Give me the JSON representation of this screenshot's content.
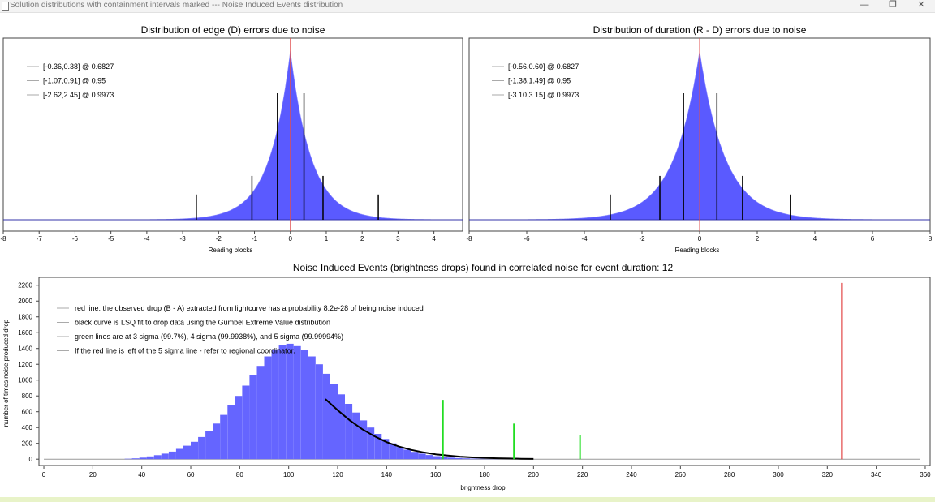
{
  "window": {
    "title": "Solution distributions with containment intervals marked --- Noise Induced Events distribution",
    "minimize_icon": "minimize-icon",
    "maximize_icon": "restore-icon",
    "close_icon": "close-icon"
  },
  "chart_data": [
    {
      "type": "bar",
      "title": "Distribution of edge (D) errors due to noise",
      "xlabel": "Reading blocks",
      "ylabel": "",
      "xlim": [
        -8,
        4.8
      ],
      "x_ticks": [
        -8,
        -7,
        -6,
        -5,
        -4,
        -3,
        -2,
        -1,
        0,
        1,
        2,
        3,
        4
      ],
      "histogram_shape": "laplace-like, centered at 0, scale 0.36",
      "center_line": {
        "x": 0,
        "color": "#e05050"
      },
      "interval_lines": [
        {
          "x": -0.36,
          "height": 0.75
        },
        {
          "x": 0.38,
          "height": 0.75
        },
        {
          "x": -1.07,
          "height": 0.26
        },
        {
          "x": 0.91,
          "height": 0.26
        },
        {
          "x": -2.62,
          "height": 0.15
        },
        {
          "x": 2.45,
          "height": 0.15
        }
      ],
      "legend": [
        "[-0.36,0.38] @ 0.6827",
        "[-1.07,0.91] @ 0.95",
        "[-2.62,2.45] @ 0.9973"
      ],
      "legend_position": "top-left",
      "colors": {
        "bars": "#5a5aff",
        "interval": "#000000",
        "center": "#e05050",
        "baseline": "#3333aa"
      }
    },
    {
      "type": "bar",
      "title": "Distribution of duration (R - D) errors due to noise",
      "xlabel": "Reading blocks",
      "ylabel": "",
      "xlim": [
        -8,
        8
      ],
      "x_ticks": [
        -8,
        -6,
        -4,
        -2,
        0,
        2,
        4,
        6,
        8
      ],
      "histogram_shape": "laplace-like, centered at 0, scale 0.55",
      "center_line": {
        "x": 0,
        "color": "#e05050"
      },
      "interval_lines": [
        {
          "x": -0.56,
          "height": 0.75
        },
        {
          "x": 0.6,
          "height": 0.75
        },
        {
          "x": -1.38,
          "height": 0.26
        },
        {
          "x": 1.49,
          "height": 0.26
        },
        {
          "x": -3.1,
          "height": 0.15
        },
        {
          "x": 3.15,
          "height": 0.15
        }
      ],
      "legend": [
        "[-0.56,0.60] @ 0.6827",
        "[-1.38,1.49] @ 0.95",
        "[-3.10,3.15] @ 0.9973"
      ],
      "legend_position": "top-left",
      "colors": {
        "bars": "#5a5aff",
        "interval": "#000000",
        "center": "#e05050",
        "baseline": "#3333aa"
      }
    },
    {
      "type": "bar",
      "title": "Noise Induced Events (brightness drops) found in correlated noise for event duration: 12",
      "xlabel": "brightness drop",
      "ylabel": "number of times noise produced drop",
      "xlim": [
        -2,
        362
      ],
      "ylim": [
        -80,
        2300
      ],
      "x_ticks": [
        0,
        20,
        40,
        60,
        80,
        100,
        120,
        140,
        160,
        180,
        200,
        220,
        240,
        260,
        280,
        300,
        320,
        340,
        360
      ],
      "y_ticks": [
        0,
        200,
        400,
        600,
        800,
        1000,
        1200,
        1400,
        1600,
        1800,
        2000,
        2200
      ],
      "histogram": {
        "bin_width": 3,
        "x": [
          33,
          36,
          39,
          42,
          45,
          48,
          51,
          54,
          57,
          60,
          63,
          66,
          69,
          72,
          75,
          78,
          81,
          84,
          87,
          90,
          93,
          96,
          99,
          102,
          105,
          108,
          111,
          114,
          117,
          120,
          123,
          126,
          129,
          132,
          135,
          138,
          141,
          144,
          147,
          150,
          153,
          156,
          159,
          162,
          165,
          168,
          171,
          174,
          177,
          180,
          183,
          186,
          189,
          192,
          195,
          198,
          201
        ],
        "values": [
          5,
          10,
          20,
          35,
          50,
          70,
          95,
          130,
          170,
          220,
          280,
          360,
          450,
          560,
          680,
          800,
          930,
          1060,
          1180,
          1300,
          1390,
          1440,
          1460,
          1430,
          1380,
          1300,
          1200,
          1080,
          950,
          820,
          700,
          590,
          490,
          400,
          320,
          255,
          200,
          155,
          120,
          92,
          70,
          52,
          38,
          28,
          20,
          14,
          10,
          7,
          5,
          3,
          2,
          1,
          1,
          1,
          0,
          0,
          0
        ]
      },
      "gumbel_fit": {
        "x": [
          115,
          120,
          125,
          130,
          135,
          140,
          145,
          150,
          155,
          160,
          165,
          170,
          175,
          180,
          185,
          190,
          195,
          200
        ],
        "y": [
          760,
          620,
          490,
          380,
          290,
          215,
          160,
          118,
          86,
          62,
          45,
          32,
          23,
          16,
          11,
          8,
          5,
          3
        ]
      },
      "sigma_lines": [
        {
          "label": "3 sigma",
          "x": 163,
          "y": 750
        },
        {
          "label": "4 sigma",
          "x": 192,
          "y": 450
        },
        {
          "label": "5 sigma",
          "x": 219,
          "y": 300
        }
      ],
      "observed_drop": {
        "x": 326,
        "y": 2230
      },
      "legend": [
        "red line: the observed drop (B - A) extracted from lightcurve has a probability 8.2e-28 of being noise induced",
        "black curve is LSQ fit to drop data using the Gumbel Extreme Value distribution",
        "green lines are at 3 sigma (99.7%), 4 sigma (99.9938%), and 5 sigma (99.99994%)",
        "If the red line is left of the 5 sigma line - refer to regional coordinator."
      ],
      "legend_position": "top-left",
      "colors": {
        "bars": "#6565ff",
        "fit": "#000000",
        "sigma": "#22dd22",
        "observed": "#dd2222"
      }
    }
  ]
}
